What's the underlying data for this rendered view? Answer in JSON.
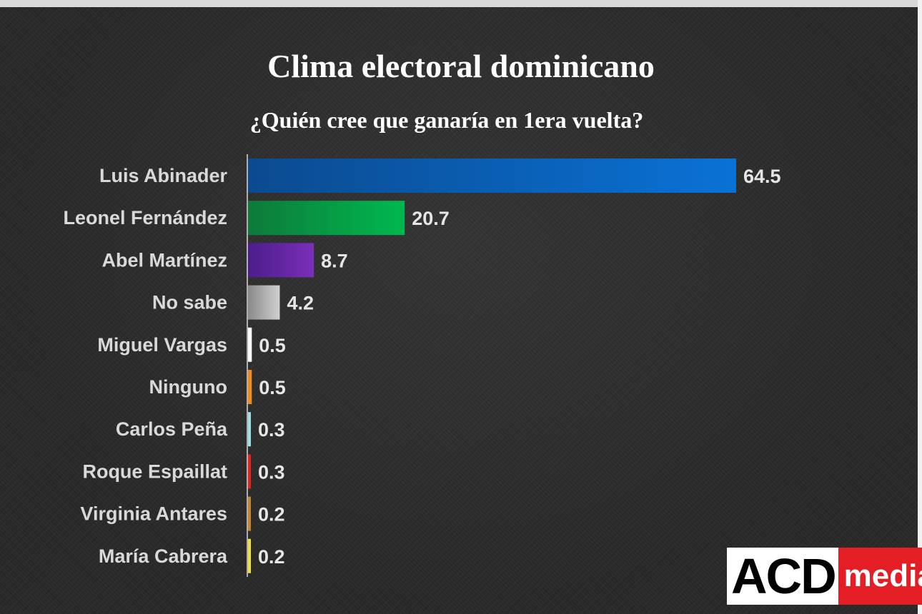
{
  "chart_data": {
    "type": "bar",
    "orientation": "horizontal",
    "title": "Clima electoral dominicano",
    "subtitle": "¿Quién cree que ganaría en 1era vuelta?",
    "categories": [
      "Luis Abinader",
      "Leonel Fernández",
      "Abel Martínez",
      "No sabe",
      "Miguel Vargas",
      "Ninguno",
      "Carlos Peña",
      "Roque Espaillat",
      "Virginia Antares",
      "María Cabrera"
    ],
    "values": [
      64.5,
      20.7,
      8.7,
      4.2,
      0.5,
      0.5,
      0.3,
      0.3,
      0.2,
      0.2
    ],
    "value_labels": [
      "64.5",
      "20.7",
      "8.7",
      "4.2",
      "0.5",
      "0.5",
      "0.3",
      "0.3",
      "0.2",
      "0.2"
    ],
    "bar_colors": [
      [
        "#0b4a8f",
        "#0a72d6"
      ],
      [
        "#0d7a3a",
        "#00b84f"
      ],
      [
        "#4b1d8a",
        "#7a2fb8"
      ],
      [
        "#8a8a8a",
        "#d0d0d0"
      ],
      [
        "#ffffff",
        "#ffffff"
      ],
      [
        "#f08c1c",
        "#f08c1c"
      ],
      [
        "#9ee0ea",
        "#9ee0ea"
      ],
      [
        "#e8231e",
        "#e8231e"
      ],
      [
        "#c8862a",
        "#c8862a"
      ],
      [
        "#f2e03a",
        "#f2e03a"
      ]
    ],
    "xlim": [
      0,
      64.5
    ],
    "grid": false,
    "legend": "none"
  },
  "logo": {
    "acd": "ACD",
    "media": "media"
  }
}
